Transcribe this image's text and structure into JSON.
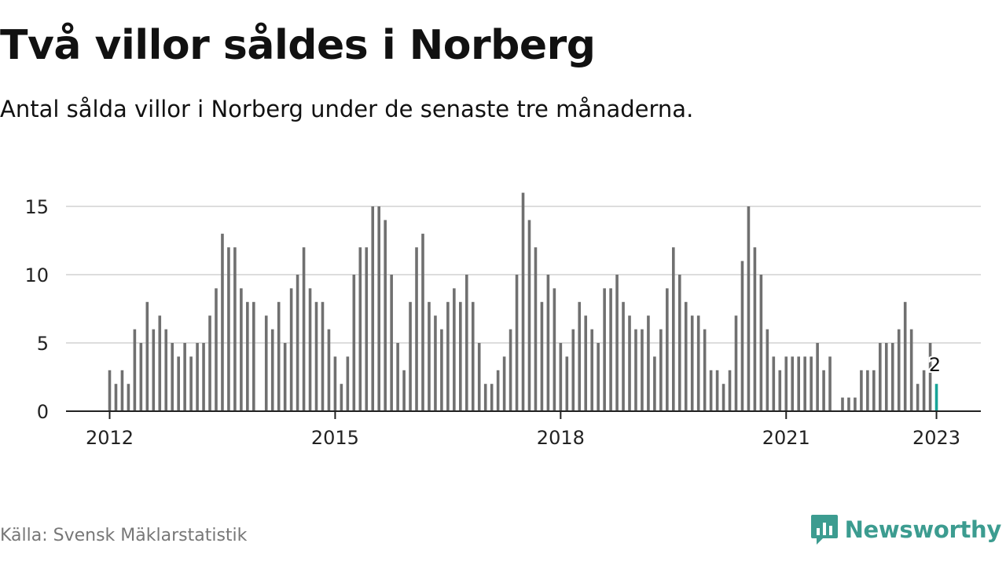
{
  "header": {
    "title": "Två villor såldes i Norberg",
    "subtitle": "Antal sålda villor i Norberg under de senaste tre månaderna."
  },
  "footer": {
    "source": "Källa: Svensk Mäklarstatistik",
    "brand": "Newsworthy"
  },
  "colors": {
    "bar": "#707070",
    "highlight": "#17a397",
    "grid": "#dddddd",
    "brand": "#3c9c90"
  },
  "chart_data": {
    "type": "bar",
    "start": "2012-01",
    "unit": "month",
    "values": [
      3,
      2,
      3,
      2,
      6,
      5,
      8,
      6,
      7,
      6,
      5,
      4,
      5,
      4,
      5,
      5,
      7,
      9,
      13,
      12,
      12,
      9,
      8,
      8,
      null,
      7,
      6,
      8,
      5,
      9,
      10,
      12,
      9,
      8,
      8,
      6,
      4,
      2,
      4,
      10,
      12,
      12,
      15,
      15,
      14,
      10,
      5,
      3,
      8,
      12,
      13,
      8,
      7,
      6,
      8,
      9,
      8,
      10,
      8,
      5,
      2,
      2,
      3,
      4,
      6,
      10,
      16,
      14,
      12,
      8,
      10,
      9,
      5,
      4,
      6,
      8,
      7,
      6,
      5,
      9,
      9,
      10,
      8,
      7,
      6,
      6,
      7,
      4,
      6,
      9,
      12,
      10,
      8,
      7,
      7,
      6,
      3,
      3,
      2,
      3,
      7,
      11,
      15,
      12,
      10,
      6,
      4,
      3,
      4,
      4,
      4,
      4,
      4,
      5,
      3,
      4,
      null,
      1,
      1,
      1,
      3,
      3,
      3,
      5,
      5,
      5,
      6,
      8,
      6,
      2,
      3,
      5,
      2
    ],
    "x_ticks": [
      "2012",
      "2015",
      "2018",
      "2021",
      "2023"
    ],
    "y_ticks": [
      0,
      5,
      10,
      15
    ],
    "ylim": [
      0,
      16
    ],
    "highlight_last": true,
    "last_label": "2",
    "grid": true
  }
}
